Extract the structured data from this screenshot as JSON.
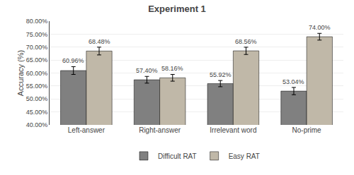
{
  "chart_data": {
    "type": "bar",
    "title": "Experiment 1",
    "ylabel": "Accuracy (%)",
    "categories": [
      "Left-answer",
      "Right-answer",
      "Irrelevant word",
      "No-prime"
    ],
    "series": [
      {
        "name": "Difficult RAT",
        "color": "#808080",
        "values": [
          60.96,
          57.4,
          55.92,
          53.04
        ],
        "errors": [
          1.5,
          1.3,
          1.2,
          1.4
        ],
        "value_labels": [
          "60.96%",
          "57.40%",
          "55.92%",
          "53.04%"
        ]
      },
      {
        "name": "Easy RAT",
        "color": "#c0b8a8",
        "values": [
          68.48,
          58.16,
          68.56,
          74.0
        ],
        "errors": [
          1.5,
          1.3,
          1.4,
          1.3
        ],
        "value_labels": [
          "68.48%",
          "58.16%",
          "68.56%",
          "74.00%"
        ]
      }
    ],
    "ylim": [
      40,
      80
    ],
    "yticks": [
      {
        "value": 40,
        "label": "40.00%"
      },
      {
        "value": 45,
        "label": "45.00%"
      },
      {
        "value": 50,
        "label": "50.00%"
      },
      {
        "value": 55,
        "label": "55.00%"
      },
      {
        "value": 60,
        "label": "60.00%"
      },
      {
        "value": 65,
        "label": "65.00%"
      },
      {
        "value": 70,
        "label": "70.00%"
      },
      {
        "value": 75,
        "label": "75.00%"
      },
      {
        "value": 80,
        "label": "80.00%"
      }
    ],
    "grid": true,
    "legend": "bottom",
    "data_labels": true
  }
}
